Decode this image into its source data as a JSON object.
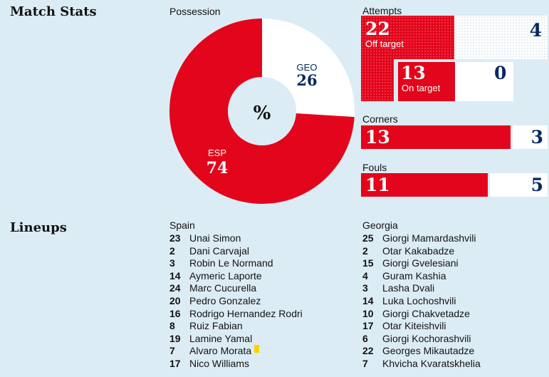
{
  "headings": {
    "match_stats": "Match Stats",
    "lineups": "Lineups"
  },
  "colors": {
    "home": "#e3051b",
    "away": "#ffffff",
    "navy": "#052962",
    "background": "#dcecf5"
  },
  "possession": {
    "label": "Possession",
    "center": "%",
    "home": {
      "abbr": "ESP",
      "value": 74
    },
    "away": {
      "abbr": "GEO",
      "value": 26
    }
  },
  "attempts": {
    "label": "Attempts",
    "off_target": {
      "label": "Off target",
      "home": 22,
      "away": 4
    },
    "on_target": {
      "label": "On target",
      "home": 13,
      "away": 0
    }
  },
  "corners": {
    "label": "Corners",
    "home": 13,
    "away": 3
  },
  "fouls": {
    "label": "Fouls",
    "home": 11,
    "away": 5
  },
  "lineups": {
    "home": {
      "team": "Spain",
      "players": [
        {
          "num": "23",
          "name": "Unai Simon"
        },
        {
          "num": "2",
          "name": "Dani Carvajal"
        },
        {
          "num": "3",
          "name": "Robin Le Normand"
        },
        {
          "num": "14",
          "name": "Aymeric Laporte"
        },
        {
          "num": "24",
          "name": "Marc Cucurella"
        },
        {
          "num": "20",
          "name": "Pedro Gonzalez"
        },
        {
          "num": "16",
          "name": "Rodrigo Hernandez Rodri"
        },
        {
          "num": "8",
          "name": "Ruiz Fabian"
        },
        {
          "num": "19",
          "name": "Lamine Yamal"
        },
        {
          "num": "7",
          "name": "Alvaro Morata",
          "card": "yellow"
        },
        {
          "num": "17",
          "name": "Nico Williams"
        }
      ]
    },
    "away": {
      "team": "Georgia",
      "players": [
        {
          "num": "25",
          "name": "Giorgi Mamardashvili"
        },
        {
          "num": "2",
          "name": "Otar Kakabadze"
        },
        {
          "num": "15",
          "name": "Giorgi Gvelesiani"
        },
        {
          "num": "4",
          "name": "Guram Kashia"
        },
        {
          "num": "3",
          "name": "Lasha Dvali"
        },
        {
          "num": "14",
          "name": "Luka Lochoshvili"
        },
        {
          "num": "10",
          "name": "Giorgi Chakvetadze"
        },
        {
          "num": "17",
          "name": "Otar Kiteishvili"
        },
        {
          "num": "6",
          "name": "Giorgi Kochorashvili"
        },
        {
          "num": "22",
          "name": "Georges Mikautadze"
        },
        {
          "num": "7",
          "name": "Khvicha Kvaratskhelia"
        }
      ]
    }
  }
}
